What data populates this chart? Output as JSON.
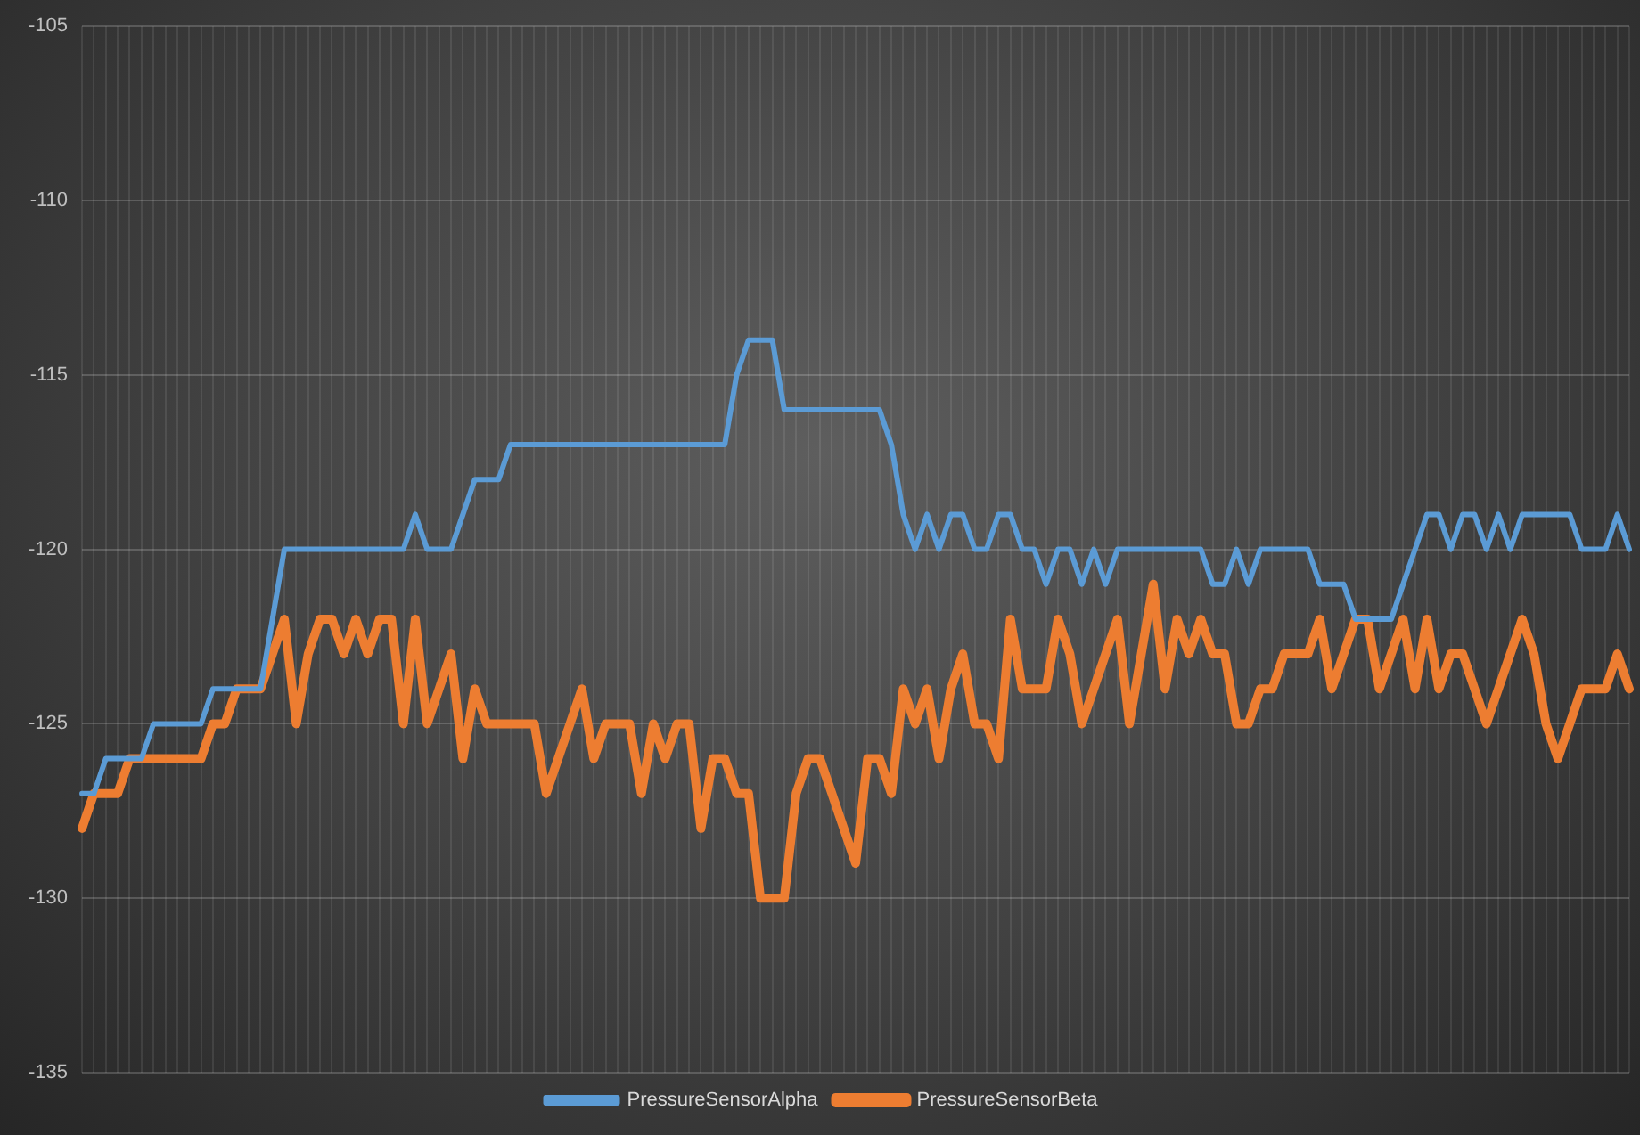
{
  "chart_data": {
    "type": "line",
    "categories": [
      null,
      null,
      null,
      null,
      null,
      null,
      null,
      null,
      null,
      null,
      null,
      null,
      null,
      null,
      null,
      null,
      null,
      null,
      null,
      null,
      null,
      null,
      null,
      null,
      null,
      null,
      null,
      null,
      null,
      null,
      null,
      null,
      null,
      null,
      null,
      null,
      null,
      null,
      null,
      null,
      null,
      null,
      null,
      null,
      null,
      null,
      null,
      null,
      null,
      null,
      null,
      null,
      null,
      null,
      null,
      null,
      null,
      null,
      null,
      null,
      null,
      null,
      null,
      null,
      null,
      null,
      null,
      null,
      null,
      null,
      null,
      null,
      null,
      null,
      null,
      null,
      null,
      null,
      null,
      null,
      null,
      null,
      null,
      null,
      null,
      null,
      null,
      null,
      null,
      null,
      null,
      null,
      null,
      null,
      null,
      null,
      null,
      null,
      null,
      null,
      null,
      null,
      null,
      null,
      null,
      null,
      null,
      null,
      null,
      null,
      null,
      null,
      null,
      null,
      null,
      null,
      null,
      null,
      null,
      null,
      null,
      null,
      null,
      null,
      null,
      null,
      null,
      null,
      null,
      null,
      null
    ],
    "series": [
      {
        "name": "PressureSensorAlpha",
        "color": "#5b9bd5",
        "values": [
          -127,
          -127,
          -126,
          -126,
          -126,
          -126,
          -125,
          -125,
          -125,
          -125,
          -125,
          -124,
          -124,
          -124,
          -124,
          -124,
          -122,
          -120,
          -120,
          -120,
          -120,
          -120,
          -120,
          -120,
          -120,
          -120,
          -120,
          -120,
          -119,
          -120,
          -120,
          -120,
          -119,
          -118,
          -118,
          -118,
          -117,
          -117,
          -117,
          -117,
          -117,
          -117,
          -117,
          -117,
          -117,
          -117,
          -117,
          -117,
          -117,
          -117,
          -117,
          -117,
          -117,
          -117,
          -117,
          -115,
          -114,
          -114,
          -114,
          -116,
          -116,
          -116,
          -116,
          -116,
          -116,
          -116,
          -116,
          -116,
          -117,
          -119,
          -120,
          -119,
          -120,
          -119,
          -119,
          -120,
          -120,
          -119,
          -119,
          -120,
          -120,
          -121,
          -120,
          -120,
          -121,
          -120,
          -121,
          -120,
          -120,
          -120,
          -120,
          -120,
          -120,
          -120,
          -120,
          -121,
          -121,
          -120,
          -121,
          -120,
          -120,
          -120,
          -120,
          -120,
          -121,
          -121,
          -121,
          -122,
          -122,
          -122,
          -122,
          -121,
          -120,
          -119,
          -119,
          -120,
          -119,
          -119,
          -120,
          -119,
          -120,
          -119,
          -119,
          -119,
          -119,
          -119,
          -120,
          -120,
          -120,
          -119,
          -120
        ]
      },
      {
        "name": "PressureSensorBeta",
        "color": "#ed7d31",
        "values": [
          -128,
          -127,
          -127,
          -127,
          -126,
          -126,
          -126,
          -126,
          -126,
          -126,
          -126,
          -125,
          -125,
          -124,
          -124,
          -124,
          -123,
          -122,
          -125,
          -123,
          -122,
          -122,
          -123,
          -122,
          -123,
          -122,
          -122,
          -125,
          -122,
          -125,
          -124,
          -123,
          -126,
          -124,
          -125,
          -125,
          -125,
          -125,
          -125,
          -127,
          -126,
          -125,
          -124,
          -126,
          -125,
          -125,
          -125,
          -127,
          -125,
          -126,
          -125,
          -125,
          -128,
          -126,
          -126,
          -127,
          -127,
          -130,
          -130,
          -130,
          -127,
          -126,
          -126,
          -127,
          -128,
          -129,
          -126,
          -126,
          -127,
          -124,
          -125,
          -124,
          -126,
          -124,
          -123,
          -125,
          -125,
          -126,
          -122,
          -124,
          -124,
          -124,
          -122,
          -123,
          -125,
          -124,
          -123,
          -122,
          -125,
          -123,
          -121,
          -124,
          -122,
          -123,
          -122,
          -123,
          -123,
          -125,
          -125,
          -124,
          -124,
          -123,
          -123,
          -123,
          -122,
          -124,
          -123,
          -122,
          -122,
          -124,
          -123,
          -122,
          -124,
          -122,
          -124,
          -123,
          -123,
          -124,
          -125,
          -124,
          -123,
          -122,
          -123,
          -125,
          -126,
          -125,
          -124,
          -124,
          -124,
          -123,
          -124
        ]
      }
    ],
    "ylim": [
      -135,
      -105
    ],
    "yticks": [
      -135,
      -130,
      -125,
      -120,
      -115,
      -110,
      -105
    ],
    "grid": true,
    "legend": "bottom",
    "tick_labels": "y",
    "marker": "none",
    "line_style": "solid"
  }
}
